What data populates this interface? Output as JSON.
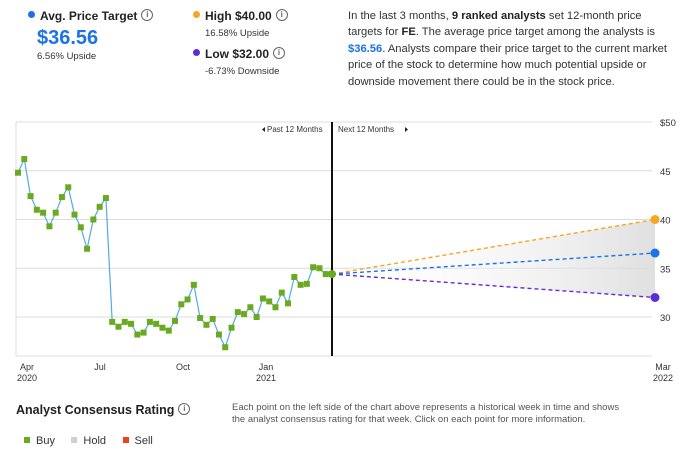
{
  "summary": {
    "avg": {
      "label": "Avg. Price Target",
      "value": "$36.56",
      "sub": "6.56% Upside",
      "color": "#1a73e8"
    },
    "high": {
      "label": "High $40.00",
      "sub": "16.58% Upside",
      "color": "#f5a623"
    },
    "low": {
      "label": "Low $32.00",
      "sub": "-6.73% Downside",
      "color": "#5c2fd6"
    }
  },
  "description": {
    "p1": "In the last 3 months, ",
    "b1": "9 ranked analysts",
    "p2": " set 12-month price targets for ",
    "b2": "FE",
    "p3": ". The average price target among the analysts is ",
    "hl": "$36.56",
    "p4": ". Analysts compare their price target to the current market price of the stock to determine how much potential upside or downside movement there could be in the stock price."
  },
  "chart_labels": {
    "past": "Past 12 Months",
    "next": "Next 12 Months",
    "x_ticks": [
      {
        "top": "Apr",
        "bottom": "2020"
      },
      {
        "top": "Jul",
        "bottom": ""
      },
      {
        "top": "Oct",
        "bottom": ""
      },
      {
        "top": "Jan",
        "bottom": "2021"
      },
      {
        "top": "Mar",
        "bottom": "2022"
      }
    ],
    "y_ticks": [
      "$50",
      "45",
      "40",
      "35",
      "30"
    ]
  },
  "chart_data": {
    "type": "line",
    "y_range": [
      26,
      50
    ],
    "series": [
      {
        "values": [
          44.8,
          46.2,
          42.4,
          41.0,
          40.7,
          39.3,
          40.7,
          42.3,
          43.3,
          40.5,
          39.2,
          37.0,
          40.0,
          41.3,
          42.2,
          29.5,
          29.0,
          29.5,
          29.3,
          28.2,
          28.4,
          29.5,
          29.3,
          28.9,
          28.6,
          29.6,
          31.3,
          31.8,
          33.3,
          29.9,
          29.2,
          29.8,
          28.2,
          26.9,
          28.9,
          30.5,
          30.3,
          31.0,
          30.0,
          31.9,
          31.6,
          31.0,
          32.5,
          31.4,
          34.1,
          33.3,
          33.4,
          35.1,
          35.0,
          34.4,
          34.4
        ]
      },
      {
        "name": "High",
        "values": [
          34.4,
          40.0
        ]
      },
      {
        "name": "Average",
        "values": [
          34.4,
          36.56
        ]
      },
      {
        "name": "Low",
        "values": [
          34.4,
          32.0
        ]
      }
    ],
    "colors": {
      "line": "#54a9ea",
      "point": "#6aaa1e",
      "high": "#f5a623",
      "avg": "#1a73e8",
      "low": "#5c2fd6"
    }
  },
  "consensus": {
    "title": "Analyst Consensus Rating",
    "legend": [
      {
        "label": "Buy",
        "color": "#6aaa1e"
      },
      {
        "label": "Hold",
        "color": "#cfcfcf"
      },
      {
        "label": "Sell",
        "color": "#e8451e"
      }
    ],
    "note": "Each point on the left side of the chart above represents a historical week in time and shows the analyst consensus rating for that week. Click on each point for more information."
  }
}
